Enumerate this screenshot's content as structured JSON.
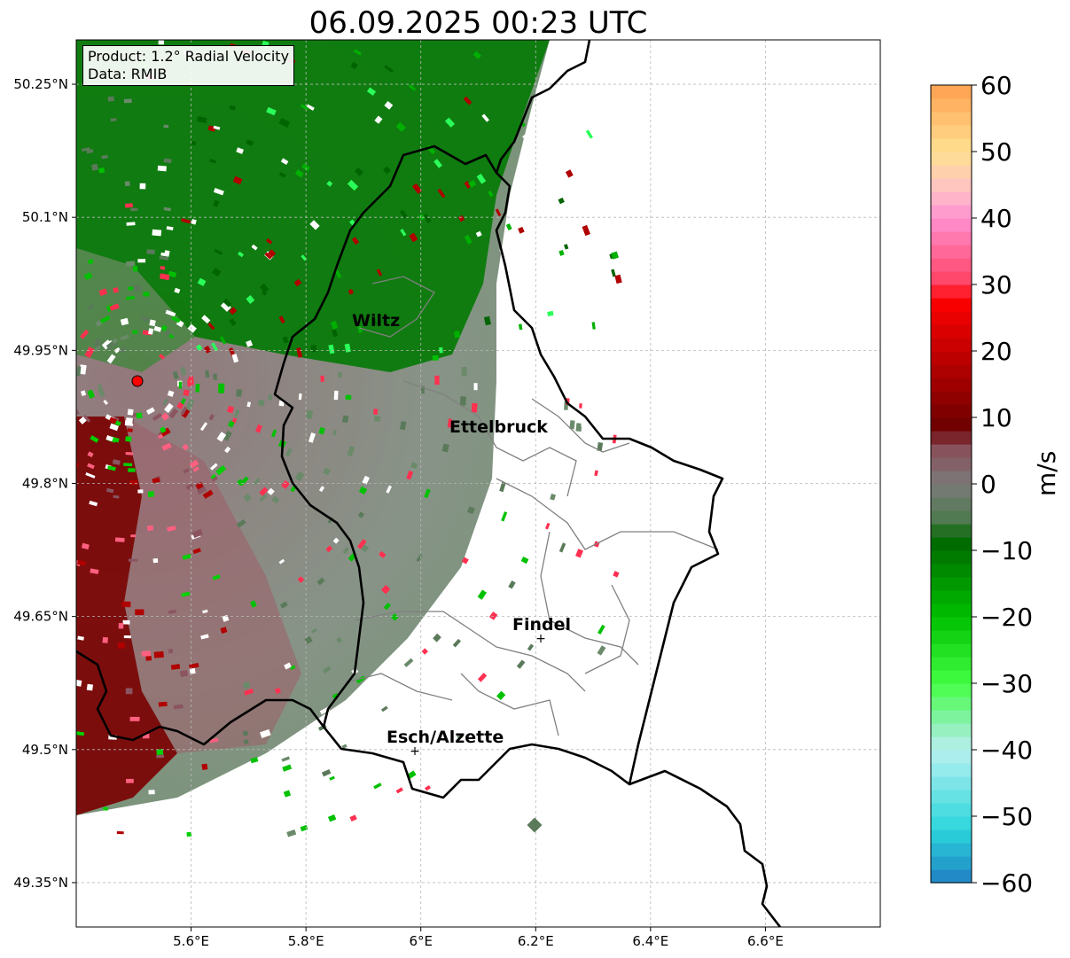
{
  "title": "06.09.2025 00:23 UTC",
  "info": {
    "product": "Product: 1.2° Radial Velocity",
    "source": "Data: RMIB"
  },
  "map": {
    "lon_range": [
      5.4,
      6.8
    ],
    "lat_range": [
      49.3,
      50.3
    ],
    "x_ticks": [
      "5.6°E",
      "5.8°E",
      "6°E",
      "6.2°E",
      "6.4°E",
      "6.6°E"
    ],
    "y_ticks": [
      "50.25°N",
      "50.1°N",
      "49.95°N",
      "49.8°N",
      "49.65°N",
      "49.5°N",
      "49.35°N"
    ],
    "radar_site_color": "#ff0000",
    "border_color": "#000000",
    "district_color": "#808080"
  },
  "cities": [
    {
      "name": "Wiltz"
    },
    {
      "name": "Ettelbruck"
    },
    {
      "name": "Findel"
    },
    {
      "name": "Esch/Alzette"
    }
  ],
  "colorbar": {
    "label": "m/s",
    "min": -60,
    "max": 60,
    "ticks": [
      "60",
      "50",
      "40",
      "30",
      "20",
      "10",
      "0",
      "−10",
      "−20",
      "−30",
      "−40",
      "−50",
      "−60"
    ],
    "stops": [
      {
        "v": -60,
        "color": "#1f7fc4"
      },
      {
        "v": -52,
        "color": "#2bd6dc"
      },
      {
        "v": -40,
        "color": "#b8f0f0"
      },
      {
        "v": -36,
        "color": "#8af0b0"
      },
      {
        "v": -30,
        "color": "#44ff44"
      },
      {
        "v": -20,
        "color": "#00c000"
      },
      {
        "v": -8,
        "color": "#006400"
      },
      {
        "v": -6,
        "color": "#4a7a4a"
      },
      {
        "v": 0,
        "color": "#7a7a7a"
      },
      {
        "v": 6,
        "color": "#8a4a55"
      },
      {
        "v": 8,
        "color": "#6a0000"
      },
      {
        "v": 28,
        "color": "#ff0000"
      },
      {
        "v": 30,
        "color": "#ff4060"
      },
      {
        "v": 40,
        "color": "#ff90d0"
      },
      {
        "v": 44,
        "color": "#ffc0c8"
      },
      {
        "v": 50,
        "color": "#ffe090"
      },
      {
        "v": 60,
        "color": "#ffa050"
      }
    ]
  }
}
